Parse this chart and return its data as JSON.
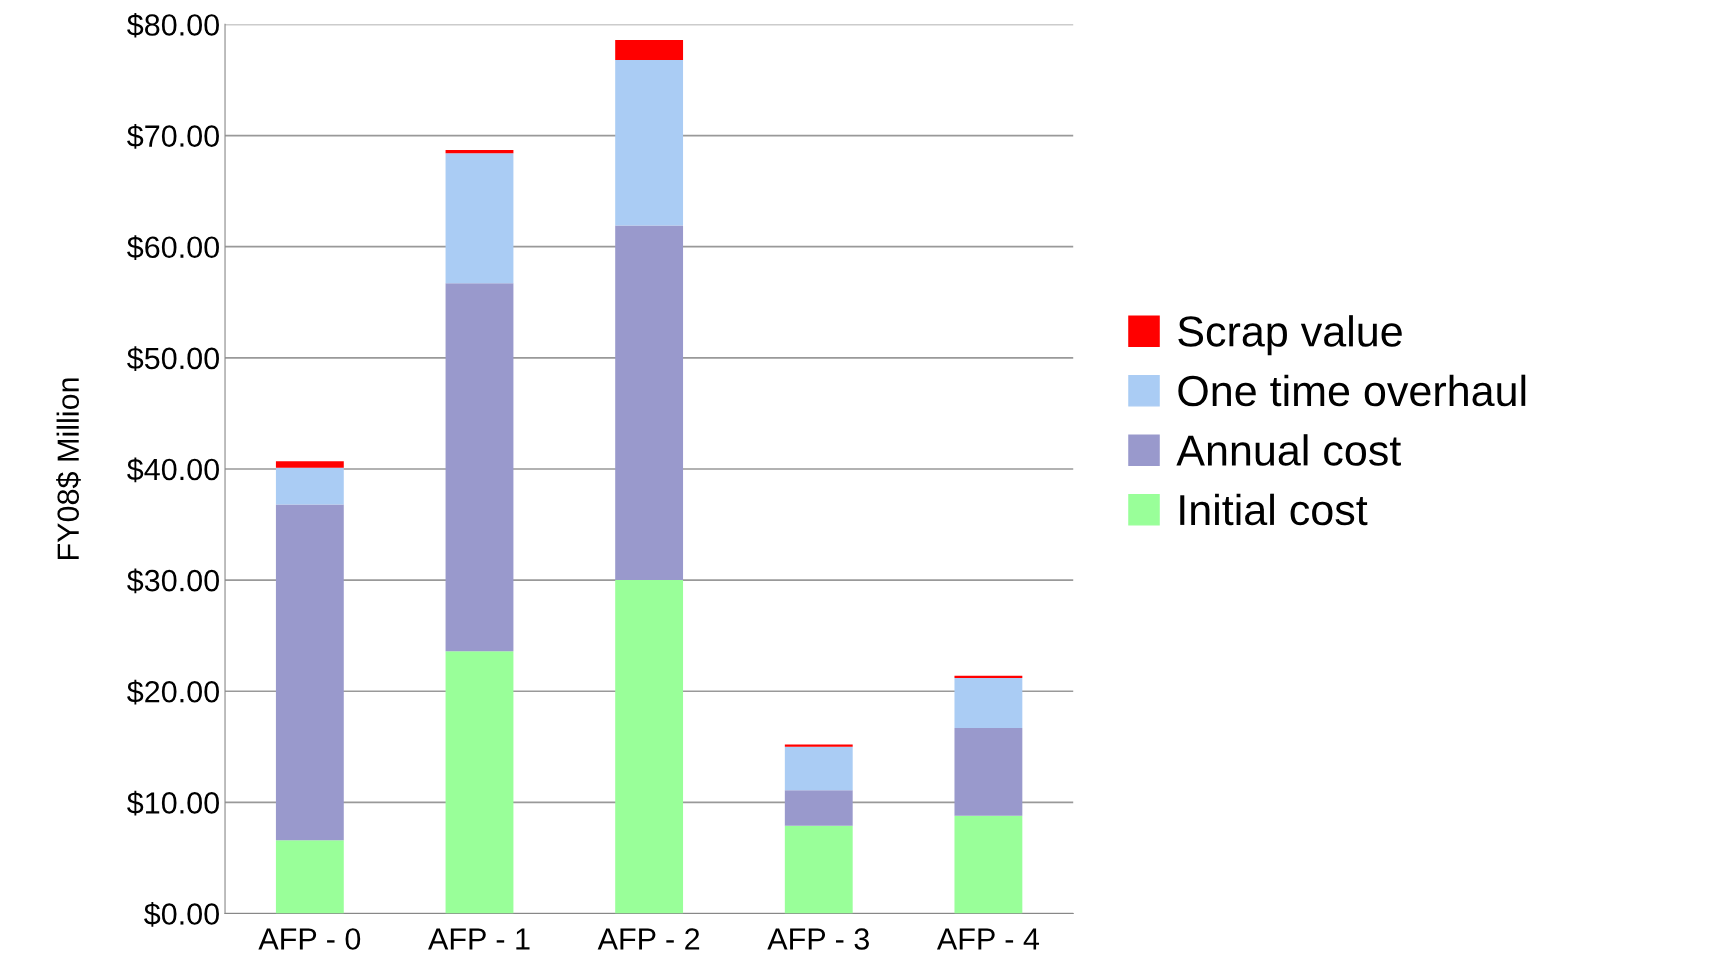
{
  "chart_data": {
    "type": "bar",
    "stacked": true,
    "ylabel": "FY08$ Million",
    "categories": [
      "AFP - 0",
      "AFP - 1",
      "AFP - 2",
      "AFP - 3",
      "AFP - 4"
    ],
    "series": [
      {
        "name": "Initial cost",
        "color": "#99ff99",
        "values": [
          6.6,
          23.6,
          30.0,
          7.9,
          8.8
        ]
      },
      {
        "name": "Annual cost",
        "color": "#9999cc",
        "values": [
          30.2,
          33.1,
          31.9,
          3.2,
          7.9
        ]
      },
      {
        "name": "One time overhaul",
        "color": "#aaccf4",
        "values": [
          3.3,
          11.7,
          14.9,
          3.9,
          4.5
        ]
      },
      {
        "name": "Scrap value",
        "color": "#ff0000",
        "values": [
          0.6,
          0.3,
          1.8,
          0.2,
          0.2
        ]
      }
    ],
    "ylim": [
      0,
      80
    ],
    "yticks": [
      {
        "value": 0,
        "label": "$0.00"
      },
      {
        "value": 10,
        "label": "$10.00"
      },
      {
        "value": 20,
        "label": "$20.00"
      },
      {
        "value": 30,
        "label": "$30.00"
      },
      {
        "value": 40,
        "label": "$40.00"
      },
      {
        "value": 50,
        "label": "$50.00"
      },
      {
        "value": 60,
        "label": "$60.00"
      },
      {
        "value": 70,
        "label": "$70.00"
      },
      {
        "value": 80,
        "label": "$80.00"
      }
    ],
    "grid": "y",
    "legend": "right"
  }
}
